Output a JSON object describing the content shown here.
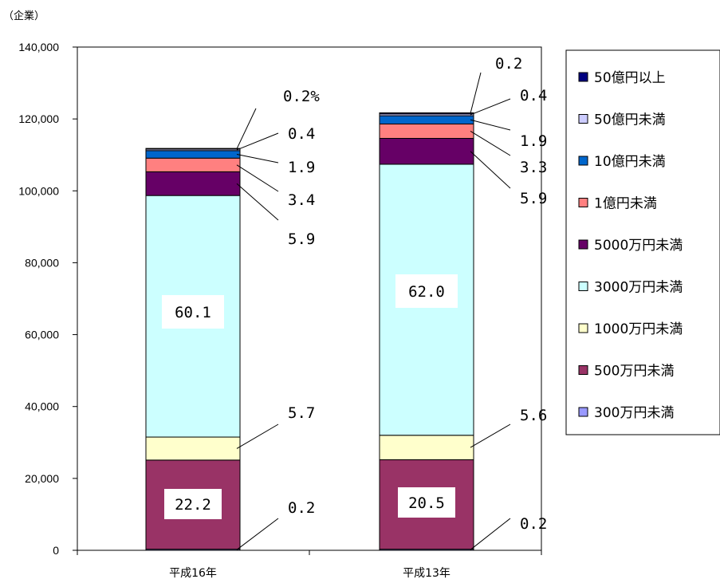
{
  "chart_data": {
    "type": "bar",
    "stacked": true,
    "unit_label": "（企業）",
    "categories": [
      "平成16年",
      "平成13年"
    ],
    "ylim": [
      0,
      140000
    ],
    "yticks": [
      "0",
      "20,000",
      "40,000",
      "60,000",
      "80,000",
      "100,000",
      "120,000",
      "140,000"
    ],
    "totals": [
      111800,
      121700
    ],
    "series": [
      {
        "name": "300万円未満",
        "color": "#9999ff",
        "values": [
          300,
          300
        ],
        "labels": [
          "0.2",
          "0.2"
        ]
      },
      {
        "name": "500万円未満",
        "color": "#993366",
        "values": [
          24800,
          24900
        ],
        "labels": [
          "22.2",
          "20.5"
        ]
      },
      {
        "name": "1000万円未満",
        "color": "#ffffcc",
        "values": [
          6400,
          6800
        ],
        "labels": [
          "5.7",
          "5.6"
        ]
      },
      {
        "name": "3000万円未満",
        "color": "#ccffff",
        "values": [
          67200,
          75400
        ],
        "labels": [
          "60.1",
          "62.0"
        ]
      },
      {
        "name": "5000万円未満",
        "color": "#660066",
        "values": [
          6600,
          7200
        ],
        "labels": [
          "5.9",
          "5.9"
        ]
      },
      {
        "name": "1億円未満",
        "color": "#ff8080",
        "values": [
          3800,
          4000
        ],
        "labels": [
          "3.4",
          "3.3"
        ]
      },
      {
        "name": "10億円未満",
        "color": "#0066cc",
        "values": [
          2100,
          2300
        ],
        "labels": [
          "1.9",
          "1.9"
        ]
      },
      {
        "name": "50億円未満",
        "color": "#ccccff",
        "values": [
          400,
          500
        ],
        "labels": [
          "0.4",
          "0.4"
        ]
      },
      {
        "name": "50億円以上",
        "color": "#000080",
        "values": [
          200,
          300
        ],
        "labels": [
          "0.2%",
          "0.2"
        ]
      }
    ],
    "grid": false,
    "legend": "right"
  }
}
